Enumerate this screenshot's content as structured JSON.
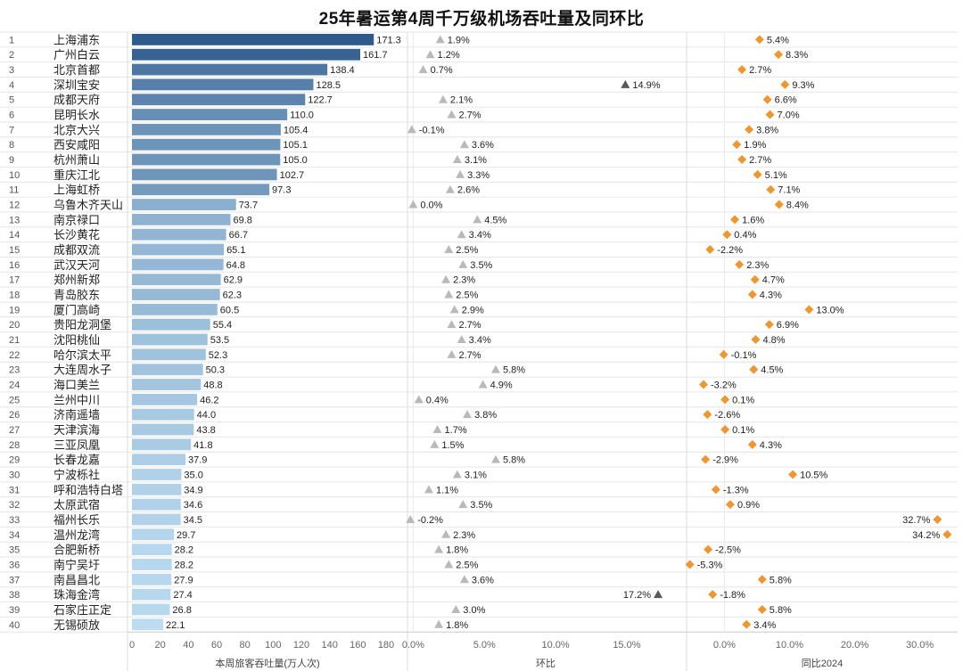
{
  "title": "25年暑运第4周千万级机场吞吐量及同环比",
  "chart_data": {
    "type": "bar",
    "title": "25年暑运第4周千万级机场吞吐量及同环比",
    "ranks": [
      1,
      2,
      3,
      4,
      5,
      6,
      7,
      8,
      9,
      10,
      11,
      12,
      13,
      14,
      15,
      16,
      17,
      18,
      19,
      20,
      21,
      22,
      23,
      24,
      25,
      26,
      27,
      28,
      29,
      30,
      31,
      32,
      33,
      34,
      35,
      36,
      37,
      38,
      39,
      40
    ],
    "categories": [
      "上海浦东",
      "广州白云",
      "北京首都",
      "深圳宝安",
      "成都天府",
      "昆明长水",
      "北京大兴",
      "西安咸阳",
      "杭州萧山",
      "重庆江北",
      "上海虹桥",
      "乌鲁木齐天山",
      "南京禄口",
      "长沙黄花",
      "成都双流",
      "武汉天河",
      "郑州新郑",
      "青岛胶东",
      "厦门高崎",
      "贵阳龙洞堡",
      "沈阳桃仙",
      "哈尔滨太平",
      "大连周水子",
      "海口美兰",
      "兰州中川",
      "济南遥墙",
      "天津滨海",
      "三亚凤凰",
      "长春龙嘉",
      "宁波栎社",
      "呼和浩特白塔",
      "太原武宿",
      "福州长乐",
      "温州龙湾",
      "合肥新桥",
      "南宁吴圩",
      "南昌昌北",
      "珠海金湾",
      "石家庄正定",
      "无锡硕放"
    ],
    "panels": [
      {
        "name": "本周旅客吞吐量(万人次)",
        "mark": "bar",
        "xlim": [
          0,
          180
        ],
        "ticks": [
          0,
          20,
          40,
          60,
          80,
          100,
          120,
          140,
          160,
          180
        ],
        "tick_labels": [
          "0",
          "20",
          "40",
          "60",
          "80",
          "100",
          "120",
          "140",
          "160",
          "180"
        ],
        "values": [
          171.3,
          161.7,
          138.4,
          128.5,
          122.7,
          110.0,
          105.4,
          105.1,
          105.0,
          102.7,
          97.3,
          73.7,
          69.8,
          66.7,
          65.1,
          64.8,
          62.9,
          62.3,
          60.5,
          55.4,
          53.5,
          52.3,
          50.3,
          48.8,
          46.2,
          44.0,
          43.8,
          41.8,
          37.9,
          35.0,
          34.9,
          34.6,
          34.5,
          29.7,
          28.2,
          28.2,
          27.9,
          27.4,
          26.8,
          22.1
        ],
        "labels": [
          "171.3",
          "161.7",
          "138.4",
          "128.5",
          "122.7",
          "110.0",
          "105.4",
          "105.1",
          "105.0",
          "102.7",
          "97.3",
          "73.7",
          "69.8",
          "66.7",
          "65.1",
          "64.8",
          "62.9",
          "62.3",
          "60.5",
          "55.4",
          "53.5",
          "52.3",
          "50.3",
          "48.8",
          "46.2",
          "44.0",
          "43.8",
          "41.8",
          "37.9",
          "35.0",
          "34.9",
          "34.6",
          "34.5",
          "29.7",
          "28.2",
          "28.2",
          "27.9",
          "27.4",
          "26.8",
          "22.1"
        ]
      },
      {
        "name": "环比",
        "mark": "triangle",
        "xlim": [
          -0.4,
          19.2
        ],
        "ticks": [
          0,
          5,
          10,
          15
        ],
        "tick_labels": [
          "0.0%",
          "5.0%",
          "10.0%",
          "15.0%"
        ],
        "values": [
          1.9,
          1.2,
          0.7,
          14.9,
          2.1,
          2.7,
          -0.1,
          3.6,
          3.1,
          3.3,
          2.6,
          0.0,
          4.5,
          3.4,
          2.5,
          3.5,
          2.3,
          2.5,
          2.9,
          2.7,
          3.4,
          2.7,
          5.8,
          4.9,
          0.4,
          3.8,
          1.7,
          1.5,
          5.8,
          3.1,
          1.1,
          3.5,
          -0.2,
          2.3,
          1.8,
          2.5,
          3.6,
          17.2,
          3.0,
          1.8
        ],
        "labels": [
          "1.9%",
          "1.2%",
          "0.7%",
          "14.9%",
          "2.1%",
          "2.7%",
          "-0.1%",
          "3.6%",
          "3.1%",
          "3.3%",
          "2.6%",
          "0.0%",
          "4.5%",
          "3.4%",
          "2.5%",
          "3.5%",
          "2.3%",
          "2.5%",
          "2.9%",
          "2.7%",
          "3.4%",
          "2.7%",
          "5.8%",
          "4.9%",
          "0.4%",
          "3.8%",
          "1.7%",
          "1.5%",
          "5.8%",
          "3.1%",
          "1.1%",
          "3.5%",
          "-0.2%",
          "2.3%",
          "1.8%",
          "2.5%",
          "3.6%",
          "17.2%",
          "3.0%",
          "1.8%"
        ],
        "color": "#b9b9b9",
        "highlight_color": "#595959"
      },
      {
        "name": "同比2024",
        "mark": "diamond",
        "xlim": [
          -5.8,
          35.8
        ],
        "ticks": [
          0,
          10,
          20,
          30
        ],
        "tick_labels": [
          "0.0%",
          "10.0%",
          "20.0%",
          "30.0%"
        ],
        "values": [
          5.4,
          8.3,
          2.7,
          9.3,
          6.6,
          7.0,
          3.8,
          1.9,
          2.7,
          5.1,
          7.1,
          8.4,
          1.6,
          0.4,
          -2.2,
          2.3,
          4.7,
          4.3,
          13.0,
          6.9,
          4.8,
          -0.1,
          4.5,
          -3.2,
          0.1,
          -2.6,
          0.1,
          4.3,
          -2.9,
          10.5,
          -1.3,
          0.9,
          32.7,
          34.2,
          -2.5,
          -5.3,
          5.8,
          -1.8,
          5.8,
          3.4
        ],
        "labels": [
          "5.4%",
          "8.3%",
          "2.7%",
          "9.3%",
          "6.6%",
          "7.0%",
          "3.8%",
          "1.9%",
          "2.7%",
          "5.1%",
          "7.1%",
          "8.4%",
          "1.6%",
          "0.4%",
          "-2.2%",
          "2.3%",
          "4.7%",
          "4.3%",
          "13.0%",
          "6.9%",
          "4.8%",
          "-0.1%",
          "4.5%",
          "-3.2%",
          "0.1%",
          "-2.6%",
          "0.1%",
          "4.3%",
          "-2.9%",
          "10.5%",
          "-1.3%",
          "0.9%",
          "32.7%",
          "34.2%",
          "-2.5%",
          "-5.3%",
          "5.8%",
          "-1.8%",
          "5.8%",
          "3.4%"
        ],
        "color": "#f0962e"
      }
    ],
    "bar_colors": [
      "#2e5a8c",
      "#bcdcf1"
    ]
  }
}
